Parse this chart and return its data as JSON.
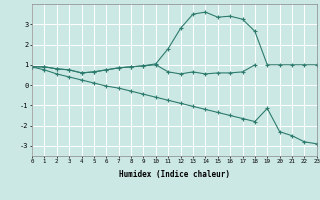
{
  "bg_color": "#cce8e4",
  "grid_color": "#ffffff",
  "line_color": "#2d7b6e",
  "line1_x": [
    0,
    1,
    2,
    3,
    4,
    5,
    6,
    7,
    8,
    9,
    10,
    11,
    12,
    13,
    14,
    15,
    16,
    17,
    18,
    19,
    20,
    21,
    22,
    23
  ],
  "line1_y": [
    0.9,
    0.9,
    0.8,
    0.75,
    0.6,
    0.65,
    0.75,
    0.85,
    0.9,
    0.95,
    1.05,
    1.8,
    2.8,
    3.5,
    3.6,
    3.35,
    3.4,
    3.25,
    2.65,
    1.0,
    1.0,
    1.0,
    1.0,
    1.0
  ],
  "line2_x": [
    0,
    1,
    2,
    3,
    4,
    5,
    6,
    7,
    8,
    9,
    10,
    11,
    12,
    13,
    14,
    15,
    16,
    17,
    18
  ],
  "line2_y": [
    0.9,
    0.9,
    0.8,
    0.75,
    0.6,
    0.65,
    0.75,
    0.85,
    0.9,
    0.95,
    1.0,
    0.65,
    0.55,
    0.65,
    0.55,
    0.6,
    0.6,
    0.65,
    1.0
  ],
  "line3_x": [
    0,
    1,
    2,
    3,
    4,
    5,
    6,
    7,
    8,
    9,
    10,
    11,
    12,
    13,
    14,
    15,
    16,
    17,
    18,
    19,
    20,
    21,
    22,
    23
  ],
  "line3_y": [
    0.9,
    0.75,
    0.55,
    0.4,
    0.25,
    0.1,
    -0.05,
    -0.15,
    -0.3,
    -0.45,
    -0.6,
    -0.75,
    -0.9,
    -1.05,
    -1.2,
    -1.35,
    -1.5,
    -1.65,
    -1.8,
    -1.15,
    -2.3,
    -2.5,
    -2.8,
    -2.9
  ],
  "xlabel": "Humidex (Indice chaleur)",
  "xlim": [
    0,
    23
  ],
  "ylim": [
    -3.5,
    4.0
  ],
  "yticks": [
    -3,
    -2,
    -1,
    0,
    1,
    2,
    3
  ],
  "xticks": [
    0,
    1,
    2,
    3,
    4,
    5,
    6,
    7,
    8,
    9,
    10,
    11,
    12,
    13,
    14,
    15,
    16,
    17,
    18,
    19,
    20,
    21,
    22,
    23
  ],
  "figsize": [
    3.2,
    2.0
  ],
  "dpi": 100
}
